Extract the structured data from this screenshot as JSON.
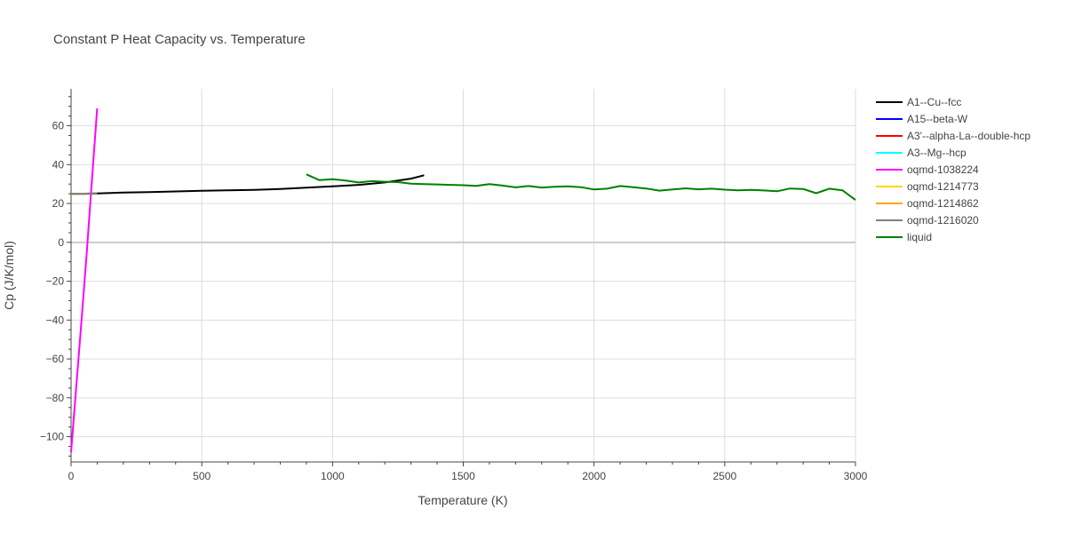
{
  "chart_data": {
    "type": "line",
    "title": "Constant P Heat Capacity vs. Temperature",
    "xlabel": "Temperature (K)",
    "ylabel": "Cp (J/K/mol)",
    "xlim": [
      0,
      3000
    ],
    "ylim": [
      -113,
      79
    ],
    "x_ticks": [
      0,
      500,
      1000,
      1500,
      2000,
      2500,
      3000
    ],
    "x_tick_labels": [
      "0",
      "500",
      "1000",
      "1500",
      "2000",
      "2500",
      "3000"
    ],
    "y_ticks": [
      -100,
      -80,
      -60,
      -40,
      -20,
      0,
      20,
      40,
      60
    ],
    "y_tick_labels": [
      "−100",
      "−80",
      "−60",
      "−40",
      "−20",
      "0",
      "20",
      "40",
      "60"
    ],
    "grid": true,
    "legend_position": "top-right",
    "series": [
      {
        "name": "A1--Cu--fcc",
        "color": "#000000",
        "x": [
          0,
          100,
          200,
          300,
          400,
          500,
          600,
          700,
          750,
          800,
          900,
          1000,
          1100,
          1200,
          1300,
          1350
        ],
        "y": [
          24.9,
          25.2,
          25.6,
          25.9,
          26.2,
          26.5,
          26.8,
          27.0,
          27.2,
          27.5,
          28.1,
          28.8,
          29.6,
          30.8,
          32.8,
          34.5
        ]
      },
      {
        "name": "A15--beta-W",
        "color": "#0000ff",
        "x": [
          0,
          60
        ],
        "y": [
          25.0,
          25.0
        ]
      },
      {
        "name": "A3'--alpha-La--double-hcp",
        "color": "#ff0000",
        "x": [
          0,
          60
        ],
        "y": [
          25.0,
          25.0
        ]
      },
      {
        "name": "A3--Mg--hcp",
        "color": "#00ffff",
        "x": [
          0,
          60
        ],
        "y": [
          25.0,
          25.0
        ]
      },
      {
        "name": "oqmd-1038224",
        "color": "#ff00ff",
        "x": [
          0,
          20,
          40,
          60,
          80,
          100
        ],
        "y": [
          -108,
          -74,
          -40,
          -5,
          32,
          69
        ]
      },
      {
        "name": "oqmd-1214773",
        "color": "#ffd700",
        "x": [
          0,
          60
        ],
        "y": [
          25.0,
          25.0
        ]
      },
      {
        "name": "oqmd-1214862",
        "color": "#ffa500",
        "x": [
          0,
          60
        ],
        "y": [
          25.0,
          25.0
        ]
      },
      {
        "name": "oqmd-1216020",
        "color": "#808080",
        "x": [
          0,
          100
        ],
        "y": [
          25.0,
          25.0
        ]
      },
      {
        "name": "liquid",
        "color": "#008000",
        "x": [
          900,
          950,
          1000,
          1050,
          1100,
          1150,
          1200,
          1250,
          1300,
          1350,
          1400,
          1450,
          1500,
          1550,
          1600,
          1650,
          1700,
          1750,
          1800,
          1850,
          1900,
          1950,
          2000,
          2050,
          2100,
          2150,
          2200,
          2250,
          2300,
          2350,
          2400,
          2450,
          2500,
          2550,
          2600,
          2650,
          2700,
          2750,
          2800,
          2850,
          2900,
          2950,
          3000
        ],
        "y": [
          35.0,
          32.0,
          32.5,
          31.8,
          30.8,
          31.5,
          31.2,
          31.0,
          30.2,
          30.0,
          29.8,
          29.6,
          29.4,
          29.1,
          30.0,
          29.2,
          28.3,
          29.0,
          28.2,
          28.6,
          28.8,
          28.4,
          27.2,
          27.6,
          29.0,
          28.4,
          27.7,
          26.6,
          27.2,
          27.8,
          27.3,
          27.6,
          27.1,
          26.8,
          27.0,
          26.7,
          26.3,
          27.7,
          27.5,
          25.3,
          27.6,
          26.8,
          21.8
        ]
      }
    ]
  }
}
